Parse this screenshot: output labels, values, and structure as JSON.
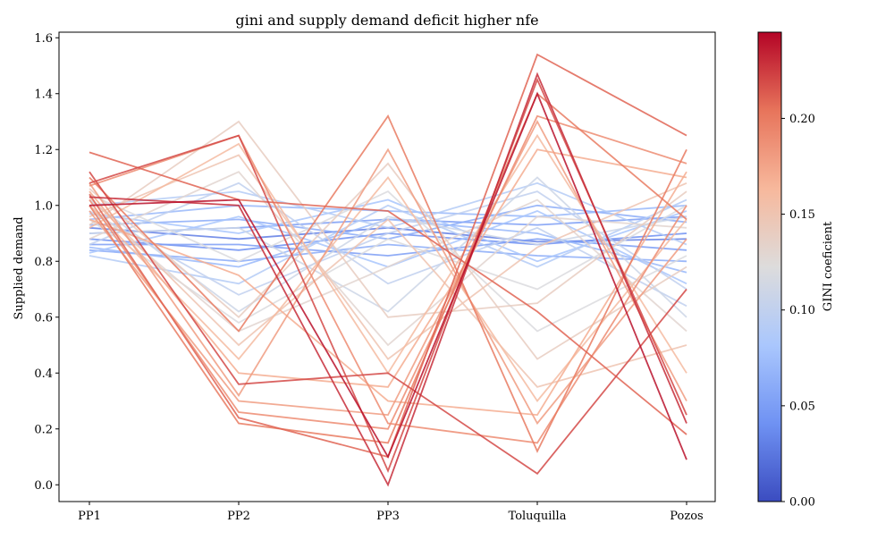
{
  "chart_data": {
    "type": "line",
    "title": "gini and supply demand deficit higher nfe",
    "xlabel": "",
    "ylabel": "Supplied demand",
    "categories": [
      "PP1",
      "PP2",
      "PP3",
      "Toluquilla",
      "Pozos"
    ],
    "ylim": [
      -0.06,
      1.62
    ],
    "yticks": [
      0.0,
      0.2,
      0.4,
      0.6,
      0.8,
      1.0,
      1.2,
      1.4,
      1.6
    ],
    "ytick_labels": [
      "0.0",
      "0.2",
      "0.4",
      "0.6",
      "0.8",
      "1.0",
      "1.2",
      "1.4",
      "1.6"
    ],
    "grid": false,
    "colorbar": {
      "label": "GINI coeficient",
      "range": [
        0.0,
        0.245
      ],
      "colormap": "coolwarm",
      "ticks": [
        0.0,
        0.05,
        0.1,
        0.15,
        0.2
      ],
      "tick_labels": [
        "0.00",
        "0.05",
        "0.10",
        "0.15",
        "0.20"
      ],
      "colors": [
        "#3b4cc0",
        "#6f92f3",
        "#aac7fd",
        "#dddcdc",
        "#f7b89c",
        "#e7745b",
        "#b40426"
      ]
    },
    "series": [
      {
        "gini": 0.03,
        "values": [
          0.92,
          0.88,
          0.92,
          0.87,
          0.88
        ]
      },
      {
        "gini": 0.04,
        "values": [
          0.88,
          0.84,
          0.9,
          0.86,
          0.9
        ]
      },
      {
        "gini": 0.05,
        "values": [
          0.9,
          0.92,
          0.95,
          0.93,
          0.96
        ]
      },
      {
        "gini": 0.05,
        "values": [
          0.86,
          0.86,
          0.82,
          0.88,
          0.84
        ]
      },
      {
        "gini": 0.06,
        "values": [
          0.93,
          0.95,
          0.88,
          1.0,
          0.94
        ]
      },
      {
        "gini": 0.06,
        "values": [
          0.84,
          0.8,
          0.86,
          0.82,
          0.8
        ]
      },
      {
        "gini": 0.07,
        "values": [
          0.95,
          1.0,
          0.98,
          0.96,
          1.0
        ]
      },
      {
        "gini": 0.07,
        "values": [
          0.85,
          0.78,
          0.95,
          0.9,
          0.76
        ]
      },
      {
        "gini": 0.08,
        "values": [
          0.97,
          0.9,
          1.02,
          0.8,
          0.98
        ]
      },
      {
        "gini": 0.08,
        "values": [
          0.83,
          0.96,
          0.78,
          0.98,
          0.72
        ]
      },
      {
        "gini": 0.09,
        "values": [
          1.0,
          1.05,
          0.92,
          1.08,
          0.86
        ]
      },
      {
        "gini": 0.09,
        "values": [
          0.82,
          0.72,
          1.0,
          0.78,
          1.02
        ]
      },
      {
        "gini": 0.1,
        "values": [
          0.98,
          0.68,
          0.9,
          1.05,
          0.7
        ]
      },
      {
        "gini": 0.1,
        "values": [
          0.86,
          1.08,
          0.72,
          0.92,
          0.64
        ]
      },
      {
        "gini": 0.11,
        "values": [
          1.02,
          0.62,
          0.96,
          0.86,
          0.96
        ]
      },
      {
        "gini": 0.11,
        "values": [
          0.9,
          0.92,
          0.62,
          1.1,
          0.6
        ]
      },
      {
        "gini": 0.12,
        "values": [
          0.95,
          0.58,
          0.88,
          0.7,
          1.0
        ]
      },
      {
        "gini": 0.12,
        "values": [
          1.04,
          0.8,
          1.05,
          0.55,
          0.82
        ]
      },
      {
        "gini": 0.13,
        "values": [
          0.88,
          1.12,
          0.5,
          0.96,
          0.92
        ]
      },
      {
        "gini": 0.13,
        "values": [
          1.0,
          0.55,
          0.78,
          1.02,
          0.55
        ]
      },
      {
        "gini": 0.14,
        "values": [
          0.93,
          1.3,
          0.6,
          0.65,
          1.05
        ]
      },
      {
        "gini": 0.14,
        "values": [
          1.06,
          0.6,
          1.15,
          0.45,
          0.78
        ]
      },
      {
        "gini": 0.15,
        "values": [
          0.96,
          1.18,
          0.45,
          0.85,
          1.08
        ]
      },
      {
        "gini": 0.15,
        "values": [
          1.03,
          0.5,
          0.95,
          0.35,
          0.5
        ]
      },
      {
        "gini": 0.16,
        "values": [
          1.0,
          0.45,
          1.1,
          0.3,
          0.95
        ]
      },
      {
        "gini": 0.16,
        "values": [
          0.92,
          1.22,
          0.4,
          1.25,
          0.4
        ]
      },
      {
        "gini": 0.17,
        "values": [
          1.05,
          0.4,
          0.35,
          1.2,
          1.1
        ]
      },
      {
        "gini": 0.17,
        "values": [
          0.95,
          0.75,
          0.3,
          0.25,
          1.12
        ]
      },
      {
        "gini": 0.18,
        "values": [
          1.08,
          0.32,
          1.2,
          0.22,
          0.88
        ]
      },
      {
        "gini": 0.18,
        "values": [
          0.98,
          0.3,
          0.25,
          1.3,
          0.3
        ]
      },
      {
        "gini": 0.19,
        "values": [
          1.02,
          0.26,
          0.2,
          1.32,
          1.15
        ]
      },
      {
        "gini": 0.19,
        "values": [
          1.07,
          1.25,
          0.22,
          0.15,
          1.0
        ]
      },
      {
        "gini": 0.2,
        "values": [
          1.0,
          0.22,
          0.15,
          1.4,
          0.95
        ]
      },
      {
        "gini": 0.2,
        "values": [
          1.1,
          0.55,
          1.32,
          0.12,
          1.2
        ]
      },
      {
        "gini": 0.21,
        "values": [
          1.19,
          1.02,
          0.98,
          0.62,
          0.18
        ]
      },
      {
        "gini": 0.21,
        "values": [
          1.04,
          0.24,
          0.1,
          1.54,
          1.25
        ]
      },
      {
        "gini": 0.22,
        "values": [
          1.08,
          1.25,
          0.05,
          1.45,
          0.25
        ]
      },
      {
        "gini": 0.22,
        "values": [
          1.12,
          0.36,
          0.4,
          0.04,
          0.7
        ]
      },
      {
        "gini": 0.23,
        "values": [
          1.03,
          1.0,
          0.0,
          1.47,
          0.22
        ]
      },
      {
        "gini": 0.24,
        "values": [
          1.0,
          1.02,
          0.1,
          1.4,
          0.09
        ]
      }
    ]
  }
}
